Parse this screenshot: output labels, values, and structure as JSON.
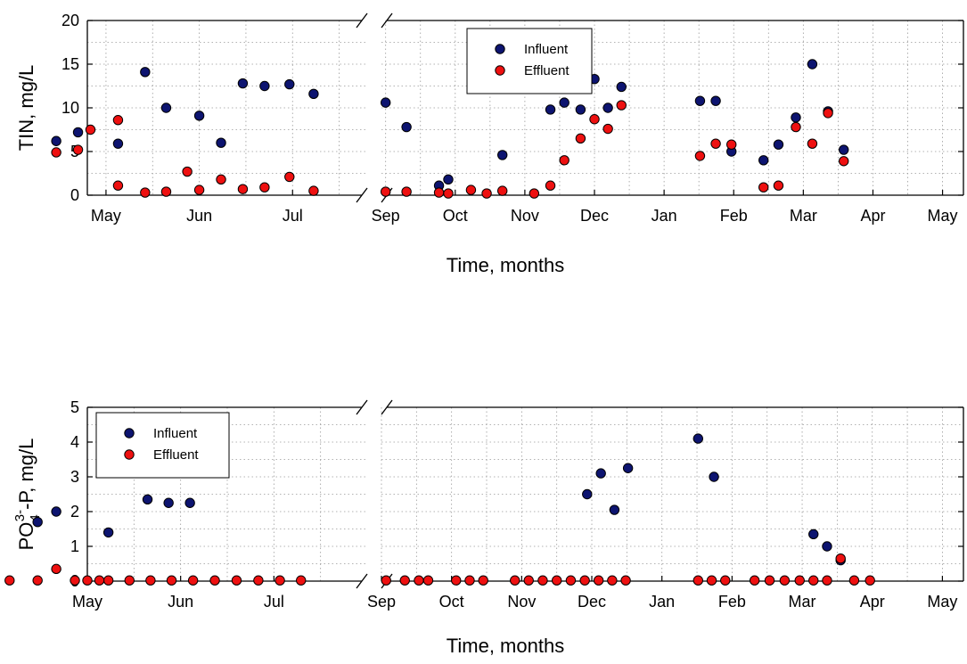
{
  "chart_data": [
    {
      "type": "scatter",
      "title": "",
      "xlabel": "Time, months",
      "ylabel": "TIN, mg/L",
      "ylim": [
        0,
        20
      ],
      "yticks": [
        0,
        5,
        10,
        15,
        20
      ],
      "x_tick_labels": [
        "May",
        "Jun",
        "Jul",
        "Sep",
        "Oct",
        "Nov",
        "Dec",
        "Jan",
        "Feb",
        "Mar",
        "Apr",
        "May"
      ],
      "grid": true,
      "legend_position": "top-center",
      "series": [
        {
          "name": "Influent",
          "color": "#0d1470",
          "points": [
            [
              "May 14",
              14.1
            ],
            [
              "May 21",
              10.0
            ],
            [
              "Jun 1",
              9.1
            ],
            [
              "Jun 8",
              6.0
            ],
            [
              "Jun 15",
              12.8
            ],
            [
              "Jun 22",
              12.5
            ],
            [
              "Jun 30",
              12.7
            ],
            [
              "Jul 8",
              11.6
            ],
            [
              "Sep 1",
              10.6
            ],
            [
              "Sep 10",
              7.8
            ],
            [
              "Sep 24",
              1.1
            ],
            [
              "Sep 28",
              1.8
            ],
            [
              "Oct 22",
              4.6
            ],
            [
              "Nov 12",
              9.8
            ],
            [
              "Nov 18",
              10.6
            ],
            [
              "Nov 25",
              9.8
            ],
            [
              "Dec 1",
              13.3
            ],
            [
              "Dec 7",
              10.0
            ],
            [
              "Dec 13",
              12.4
            ],
            [
              "Jan 17",
              10.8
            ],
            [
              "Jan 24",
              10.8
            ],
            [
              "Jan 31",
              5.0
            ],
            [
              "Feb 13",
              4.0
            ],
            [
              "Feb 19",
              5.8
            ],
            [
              "Feb 26",
              8.9
            ],
            [
              "Mar 5",
              15.0
            ],
            [
              "Mar 12",
              9.6
            ],
            [
              "Mar 19",
              5.2
            ],
            [
              "Apr 15",
              6.2
            ],
            [
              "Apr 22",
              7.2
            ],
            [
              "May 5",
              5.9
            ]
          ]
        },
        {
          "name": "Effluent",
          "color": "#ee1010",
          "points": [
            [
              "Apr 26",
              7.5
            ],
            [
              "May 5",
              8.6
            ],
            [
              "May 14",
              0.3
            ],
            [
              "May 21",
              0.4
            ],
            [
              "May 28",
              2.7
            ],
            [
              "Jun 1",
              0.6
            ],
            [
              "Jun 8",
              1.8
            ],
            [
              "Jun 15",
              0.7
            ],
            [
              "Jun 22",
              0.9
            ],
            [
              "Jun 30",
              2.1
            ],
            [
              "Jul 8",
              0.5
            ],
            [
              "Sep 1",
              0.4
            ],
            [
              "Sep 10",
              0.4
            ],
            [
              "Sep 24",
              0.3
            ],
            [
              "Sep 28",
              0.2
            ],
            [
              "Oct 8",
              0.6
            ],
            [
              "Oct 15",
              0.2
            ],
            [
              "Oct 22",
              0.5
            ],
            [
              "Nov 5",
              0.2
            ],
            [
              "Nov 12",
              1.1
            ],
            [
              "Nov 18",
              4.0
            ],
            [
              "Nov 25",
              6.5
            ],
            [
              "Dec 1",
              8.7
            ],
            [
              "Dec 7",
              7.6
            ],
            [
              "Dec 13",
              10.3
            ],
            [
              "Jan 17",
              4.5
            ],
            [
              "Jan 24",
              5.9
            ],
            [
              "Jan 31",
              5.8
            ],
            [
              "Feb 13",
              0.9
            ],
            [
              "Feb 19",
              1.1
            ],
            [
              "Feb 26",
              7.8
            ],
            [
              "Mar 5",
              5.9
            ],
            [
              "Mar 12",
              9.4
            ],
            [
              "Mar 19",
              3.9
            ],
            [
              "Apr 15",
              4.9
            ],
            [
              "Apr 22",
              5.2
            ],
            [
              "May 5",
              1.1
            ]
          ]
        }
      ]
    },
    {
      "type": "scatter",
      "title": "",
      "xlabel": "Time, months",
      "ylabel": "PO43--P, mg/L",
      "ylim": [
        0,
        5
      ],
      "yticks": [
        0,
        1,
        2,
        3,
        4,
        5
      ],
      "x_tick_labels": [
        "May",
        "Jun",
        "Jul",
        "Sep",
        "Oct",
        "Nov",
        "Dec",
        "Jan",
        "Feb",
        "Mar",
        "Apr",
        "May"
      ],
      "grid": true,
      "legend_position": "top-left",
      "series": [
        {
          "name": "Influent",
          "color": "#0d1470",
          "points": [
            [
              "May 8",
              1.4
            ],
            [
              "May 21",
              2.35
            ],
            [
              "May 28",
              2.25
            ],
            [
              "Jun 4",
              2.25
            ],
            [
              "Nov 29",
              2.5
            ],
            [
              "Dec 5",
              3.1
            ],
            [
              "Dec 11",
              2.05
            ],
            [
              "Dec 17",
              3.25
            ],
            [
              "Jan 17",
              4.1
            ],
            [
              "Jan 24",
              3.0
            ],
            [
              "Mar 6",
              1.35
            ],
            [
              "Mar 12",
              1.0
            ],
            [
              "Mar 18",
              0.6
            ],
            [
              "Apr 15",
              1.7
            ],
            [
              "Apr 21",
              2.0
            ]
          ]
        },
        {
          "name": "Effluent",
          "color": "#ee1010",
          "points": [
            [
              "May 1",
              0.02
            ],
            [
              "May 8",
              0.02
            ],
            [
              "May 15",
              0.02
            ],
            [
              "May 22",
              0.02
            ],
            [
              "May 29",
              0.02
            ],
            [
              "Jun 5",
              0.02
            ],
            [
              "Jun 12",
              0.02
            ],
            [
              "Jun 19",
              0.02
            ],
            [
              "Jun 26",
              0.02
            ],
            [
              "Jul 3",
              0.02
            ],
            [
              "Jul 10",
              0.02
            ],
            [
              "Sep 3",
              0.02
            ],
            [
              "Sep 11",
              0.02
            ],
            [
              "Sep 17",
              0.02
            ],
            [
              "Sep 21",
              0.02
            ],
            [
              "Oct 3",
              0.02
            ],
            [
              "Oct 9",
              0.02
            ],
            [
              "Oct 15",
              0.02
            ],
            [
              "Oct 29",
              0.02
            ],
            [
              "Nov 4",
              0.02
            ],
            [
              "Nov 10",
              0.02
            ],
            [
              "Nov 16",
              0.02
            ],
            [
              "Nov 22",
              0.02
            ],
            [
              "Nov 28",
              0.02
            ],
            [
              "Dec 4",
              0.02
            ],
            [
              "Dec 10",
              0.02
            ],
            [
              "Dec 16",
              0.02
            ],
            [
              "Jan 17",
              0.02
            ],
            [
              "Jan 23",
              0.02
            ],
            [
              "Jan 29",
              0.02
            ],
            [
              "Feb 10",
              0.02
            ],
            [
              "Feb 16",
              0.02
            ],
            [
              "Feb 22",
              0.02
            ],
            [
              "Feb 28",
              0.02
            ],
            [
              "Mar 6",
              0.02
            ],
            [
              "Mar 12",
              0.02
            ],
            [
              "Mar 18",
              0.65
            ],
            [
              "Mar 24",
              0.02
            ],
            [
              "Mar 31",
              0.02
            ],
            [
              "Apr 6",
              0.02
            ],
            [
              "Apr 15",
              0.02
            ],
            [
              "Apr 21",
              0.35
            ],
            [
              "Apr 27",
              0.02
            ],
            [
              "May 5",
              0.02
            ]
          ]
        }
      ]
    }
  ]
}
